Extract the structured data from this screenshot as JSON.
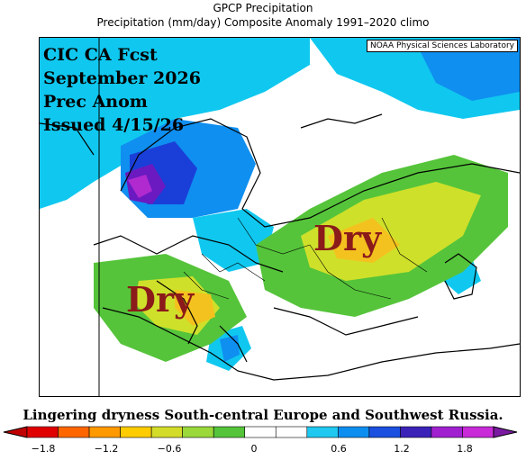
{
  "title_line1": "GPCP Precipitation",
  "title_line2": "Precipitation (mm/day) Composite Anomaly 1991–2020 climo",
  "credit": "NOAA Physical Sciences Laboratory",
  "overlay_lines": [
    "CIC CA Fcst",
    "September 2026",
    "Prec Anom",
    "Issued 4/15/26"
  ],
  "dry_labels": [
    "Dry",
    "Dry"
  ],
  "caption": "Lingering dryness South-central Europe and Southwest Russia.",
  "colorbar": {
    "ticks": [
      "−1.8",
      "−1.2",
      "−0.6",
      "0",
      "0.6",
      "1.2",
      "1.8"
    ],
    "colors": [
      "#e00000",
      "#ff6600",
      "#ff9900",
      "#ffcc00",
      "#d4dc2a",
      "#9bd83a",
      "#55c43a",
      "#ffffff",
      "#ffffff",
      "#1ec8f0",
      "#0c8ef0",
      "#1a4fe0",
      "#3a22b8",
      "#a020d0",
      "#c82ad8"
    ],
    "left_arrow_color": "#c00000",
    "right_arrow_color": "#7a1aa0"
  },
  "colors": {
    "land_bg": "#ffffff",
    "wet_light": "#10c8ef",
    "wet_mid": "#0f8ff0",
    "wet_dark": "#1a3fd8",
    "wet_purple": "#6a1ac0",
    "wet_magenta": "#b02ad0",
    "dry_light": "#55c43a",
    "dry_mid": "#cfe02a",
    "dry_orange": "#f4c21e",
    "dry_label": "#8b1a1a"
  }
}
